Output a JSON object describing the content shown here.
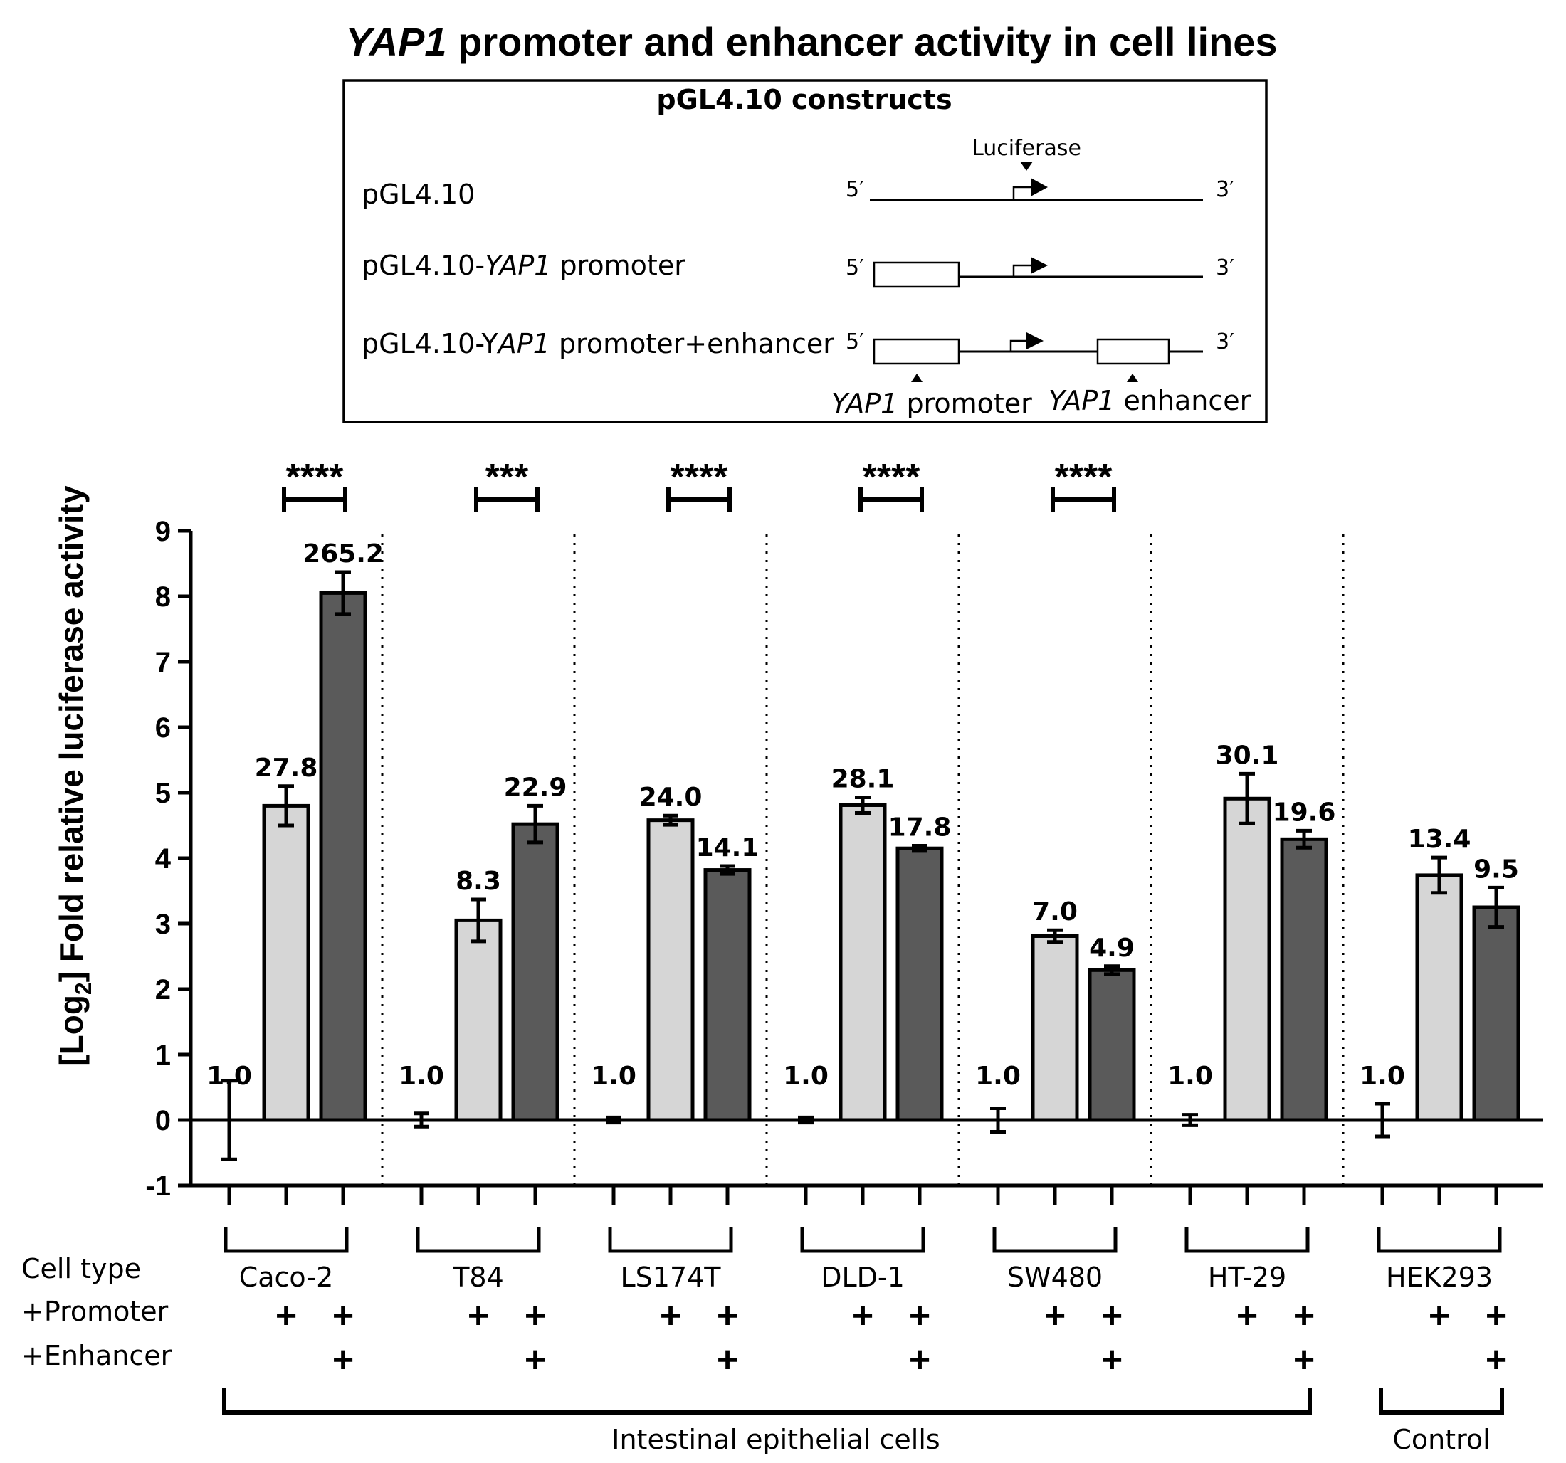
{
  "chart_data": {
    "type": "bar",
    "title": "YAP1 promoter and enhancer activity in cell lines",
    "title_italic_part": "YAP1",
    "title_rest": " promoter and enhancer activity in cell lines",
    "ylabel_prefix": "[Log",
    "ylabel_sub": "2",
    "ylabel_suffix": "] Fold relative luciferase activity",
    "ylim": [
      -1,
      9
    ],
    "yticks": [
      "-1",
      "0",
      "1",
      "2",
      "3",
      "4",
      "5",
      "6",
      "7",
      "8",
      "9"
    ],
    "series": [
      {
        "name": "pGL4.10",
        "color": "#ffffff"
      },
      {
        "name": "pGL4.10-YAP1 promoter",
        "color": "#d6d6d6"
      },
      {
        "name": "pGL4.10-YAP1 promoter+enhancer",
        "color": "#5a5a5a"
      }
    ],
    "groups": [
      {
        "cell": "Caco-2",
        "values": [
          0.0,
          4.8,
          8.05
        ],
        "errors": [
          0.6,
          0.3,
          0.32
        ],
        "labels": [
          "1.0",
          "27.8",
          "265.2"
        ],
        "significance": "****"
      },
      {
        "cell": "T84",
        "values": [
          0.0,
          3.05,
          4.52
        ],
        "errors": [
          0.1,
          0.32,
          0.28
        ],
        "labels": [
          "1.0",
          "8.3",
          "22.9"
        ],
        "significance": "***"
      },
      {
        "cell": "LS174T",
        "values": [
          0.0,
          4.58,
          3.82
        ],
        "errors": [
          0.04,
          0.07,
          0.06
        ],
        "labels": [
          "1.0",
          "24.0",
          "14.1"
        ],
        "significance": "****"
      },
      {
        "cell": "DLD-1",
        "values": [
          0.0,
          4.81,
          4.15
        ],
        "errors": [
          0.04,
          0.12,
          0.04
        ],
        "labels": [
          "1.0",
          "28.1",
          "17.8"
        ],
        "significance": "****"
      },
      {
        "cell": "SW480",
        "values": [
          0.0,
          2.81,
          2.29
        ],
        "errors": [
          0.18,
          0.09,
          0.06
        ],
        "labels": [
          "1.0",
          "7.0",
          "4.9"
        ],
        "significance": "****"
      },
      {
        "cell": "HT-29",
        "values": [
          0.0,
          4.91,
          4.29
        ],
        "errors": [
          0.08,
          0.38,
          0.13
        ],
        "labels": [
          "1.0",
          "30.1",
          "19.6"
        ],
        "significance": ""
      },
      {
        "cell": "HEK293",
        "values": [
          0.0,
          3.74,
          3.25
        ],
        "errors": [
          0.25,
          0.27,
          0.3
        ],
        "labels": [
          "1.0",
          "13.4",
          "9.5"
        ],
        "significance": ""
      }
    ],
    "row_labels": {
      "cell_type": "Cell type",
      "promoter": "+Promoter",
      "enhancer": "+Enhancer"
    },
    "plus_symbol": "+",
    "brackets": {
      "intestinal": "Intestinal epithelial cells",
      "control": "Control"
    }
  },
  "inset": {
    "heading": "pGL4.10 constructs",
    "luciferase": "Luciferase",
    "five_prime": "5′",
    "three_prime": "3′",
    "constructs": [
      {
        "pre": "pGL4.10",
        "it": "",
        "post": ""
      },
      {
        "pre": "pGL4.10-",
        "it": "YAP1",
        "post": " promoter"
      },
      {
        "pre": "pGL4.10-Y",
        "it": "AP1",
        "post": " promoter+enhancer"
      }
    ],
    "promoter_label_it": "YAP1",
    "promoter_label_rest": " promoter",
    "enhancer_label_it": "YAP1",
    "enhancer_label_rest": " enhancer"
  }
}
